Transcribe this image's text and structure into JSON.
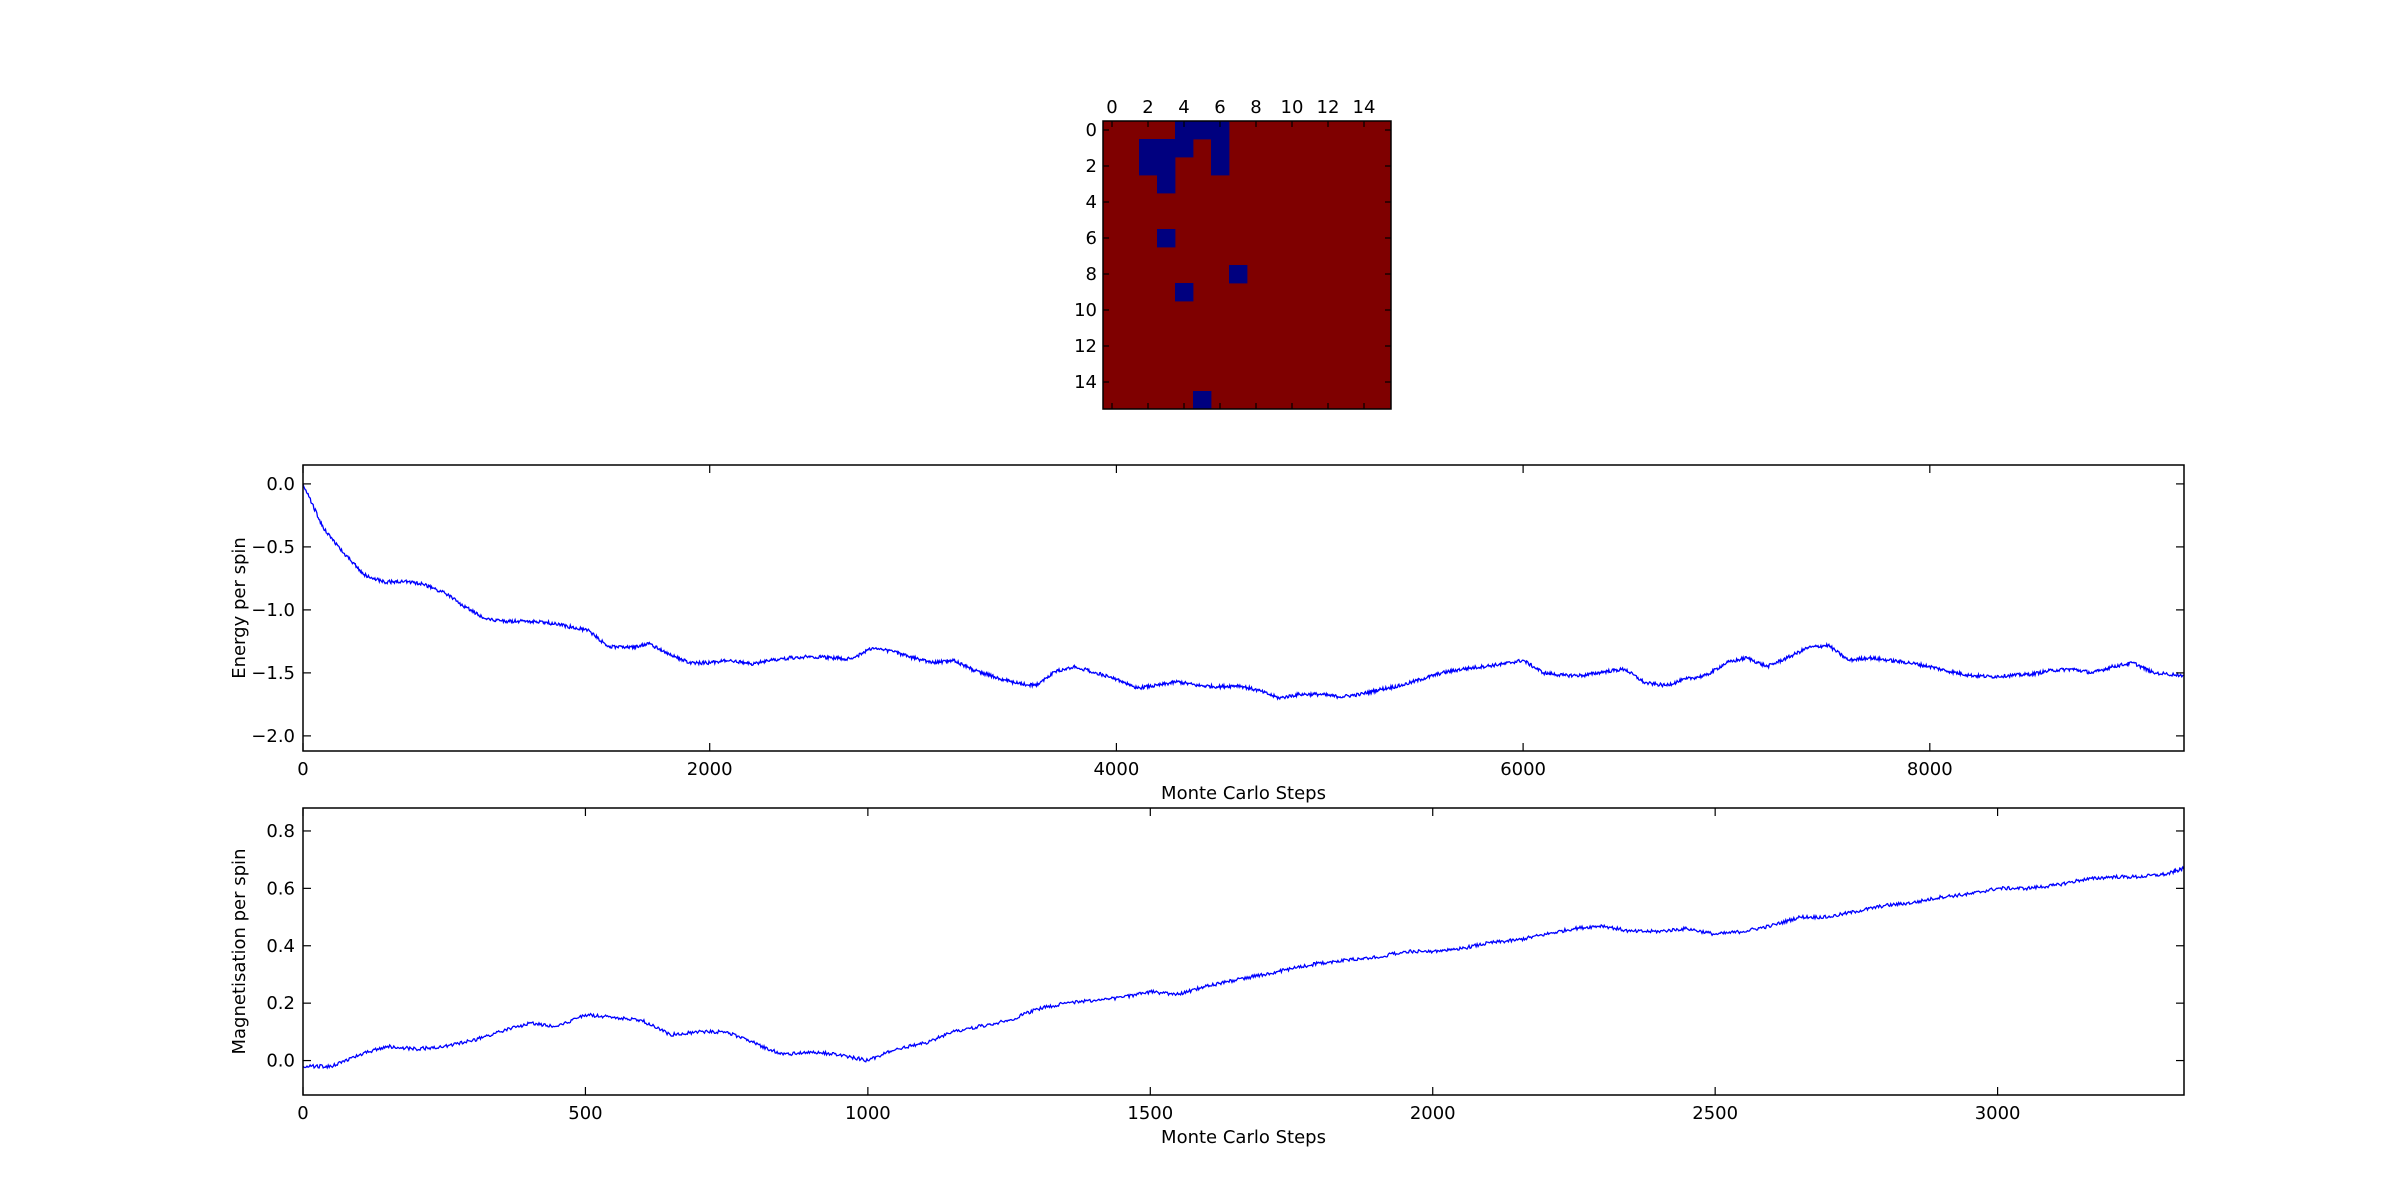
{
  "chart_data": [
    {
      "type": "heatmap",
      "grid_size": [
        16,
        16
      ],
      "x_ticks": [
        0,
        2,
        4,
        6,
        8,
        10,
        12,
        14
      ],
      "y_ticks": [
        0,
        2,
        4,
        6,
        8,
        10,
        12,
        14
      ],
      "x_ticks_position": "top",
      "colors": {
        "up": "#7f0000",
        "down": "#00007f"
      },
      "down_cells": [
        [
          0,
          4
        ],
        [
          0,
          5
        ],
        [
          0,
          6
        ],
        [
          1,
          2
        ],
        [
          1,
          3
        ],
        [
          1,
          4
        ],
        [
          1,
          6
        ],
        [
          2,
          2
        ],
        [
          2,
          3
        ],
        [
          2,
          6
        ],
        [
          3,
          3
        ],
        [
          6,
          3
        ],
        [
          8,
          7
        ],
        [
          9,
          4
        ],
        [
          15,
          5
        ]
      ]
    },
    {
      "type": "line",
      "title": "",
      "xlabel": "Monte Carlo Steps",
      "ylabel": "Energy per spin",
      "xlim": [
        0,
        9250
      ],
      "ylim": [
        -2.12,
        0.15
      ],
      "x_ticks": [
        0,
        2000,
        4000,
        6000,
        8000
      ],
      "y_ticks": [
        0.0,
        -0.5,
        -1.0,
        -1.5,
        -2.0
      ],
      "y_tick_labels": [
        "0.0",
        "−0.5",
        "−1.0",
        "−1.5",
        "−2.0"
      ],
      "series": [
        {
          "color": "#0000ff",
          "x": [
            0,
            100,
            200,
            300,
            400,
            500,
            600,
            700,
            800,
            900,
            1000,
            1100,
            1200,
            1300,
            1400,
            1500,
            1600,
            1700,
            1800,
            1900,
            2000,
            2100,
            2200,
            2300,
            2400,
            2500,
            2600,
            2700,
            2800,
            2900,
            3000,
            3100,
            3200,
            3300,
            3400,
            3500,
            3600,
            3700,
            3800,
            3900,
            4000,
            4100,
            4200,
            4300,
            4400,
            4500,
            4600,
            4700,
            4800,
            4900,
            5000,
            5100,
            5200,
            5300,
            5400,
            5500,
            5600,
            5700,
            5800,
            5900,
            6000,
            6100,
            6200,
            6300,
            6400,
            6500,
            6600,
            6700,
            6800,
            6900,
            7000,
            7100,
            7200,
            7300,
            7400,
            7500,
            7600,
            7700,
            7800,
            7900,
            8000,
            8100,
            8200,
            8300,
            8400,
            8500,
            8600,
            8700,
            8800,
            8900,
            9000,
            9100,
            9250
          ],
          "y": [
            0.0,
            -0.35,
            -0.55,
            -0.72,
            -0.78,
            -0.77,
            -0.8,
            -0.87,
            -0.98,
            -1.07,
            -1.09,
            -1.09,
            -1.1,
            -1.13,
            -1.16,
            -1.29,
            -1.3,
            -1.27,
            -1.35,
            -1.42,
            -1.42,
            -1.4,
            -1.43,
            -1.4,
            -1.38,
            -1.37,
            -1.38,
            -1.39,
            -1.3,
            -1.33,
            -1.38,
            -1.42,
            -1.4,
            -1.48,
            -1.53,
            -1.58,
            -1.6,
            -1.49,
            -1.45,
            -1.5,
            -1.55,
            -1.62,
            -1.6,
            -1.57,
            -1.6,
            -1.61,
            -1.6,
            -1.64,
            -1.7,
            -1.67,
            -1.67,
            -1.69,
            -1.67,
            -1.63,
            -1.6,
            -1.55,
            -1.5,
            -1.47,
            -1.45,
            -1.43,
            -1.4,
            -1.5,
            -1.52,
            -1.52,
            -1.49,
            -1.47,
            -1.58,
            -1.6,
            -1.55,
            -1.52,
            -1.42,
            -1.38,
            -1.45,
            -1.38,
            -1.3,
            -1.28,
            -1.4,
            -1.38,
            -1.4,
            -1.42,
            -1.45,
            -1.49,
            -1.52,
            -1.53,
            -1.52,
            -1.51,
            -1.48,
            -1.47,
            -1.5,
            -1.45,
            -1.42,
            -1.5,
            -1.52
          ]
        }
      ]
    },
    {
      "type": "line",
      "title": "",
      "xlabel": "Monte Carlo Steps",
      "ylabel": "Magnetisation per spin",
      "xlim": [
        0,
        3330
      ],
      "ylim": [
        -0.12,
        0.88
      ],
      "x_ticks": [
        0,
        500,
        1000,
        1500,
        2000,
        2500,
        3000
      ],
      "y_ticks": [
        0.0,
        0.2,
        0.4,
        0.6,
        0.8
      ],
      "y_tick_labels": [
        "0.0",
        "0.2",
        "0.4",
        "0.6",
        "0.8"
      ],
      "series": [
        {
          "color": "#0000ff",
          "x": [
            0,
            50,
            100,
            150,
            200,
            250,
            300,
            350,
            400,
            450,
            500,
            550,
            600,
            650,
            700,
            750,
            800,
            850,
            900,
            950,
            1000,
            1050,
            1100,
            1150,
            1200,
            1250,
            1300,
            1350,
            1400,
            1450,
            1500,
            1550,
            1600,
            1650,
            1700,
            1750,
            1800,
            1850,
            1900,
            1950,
            2000,
            2050,
            2100,
            2150,
            2200,
            2250,
            2300,
            2350,
            2400,
            2450,
            2500,
            2550,
            2600,
            2650,
            2700,
            2750,
            2800,
            2850,
            2900,
            2950,
            3000,
            3050,
            3100,
            3150,
            3200,
            3250,
            3300,
            3330
          ],
          "y": [
            -0.02,
            -0.02,
            0.02,
            0.05,
            0.04,
            0.05,
            0.07,
            0.1,
            0.13,
            0.12,
            0.16,
            0.15,
            0.14,
            0.09,
            0.1,
            0.1,
            0.06,
            0.02,
            0.03,
            0.02,
            0.0,
            0.04,
            0.06,
            0.1,
            0.12,
            0.14,
            0.18,
            0.2,
            0.21,
            0.22,
            0.24,
            0.23,
            0.26,
            0.28,
            0.3,
            0.32,
            0.34,
            0.35,
            0.36,
            0.38,
            0.38,
            0.39,
            0.41,
            0.42,
            0.44,
            0.46,
            0.47,
            0.45,
            0.45,
            0.46,
            0.44,
            0.45,
            0.47,
            0.5,
            0.5,
            0.52,
            0.54,
            0.55,
            0.57,
            0.58,
            0.6,
            0.6,
            0.61,
            0.63,
            0.64,
            0.64,
            0.65,
            0.67
          ]
        }
      ]
    }
  ]
}
